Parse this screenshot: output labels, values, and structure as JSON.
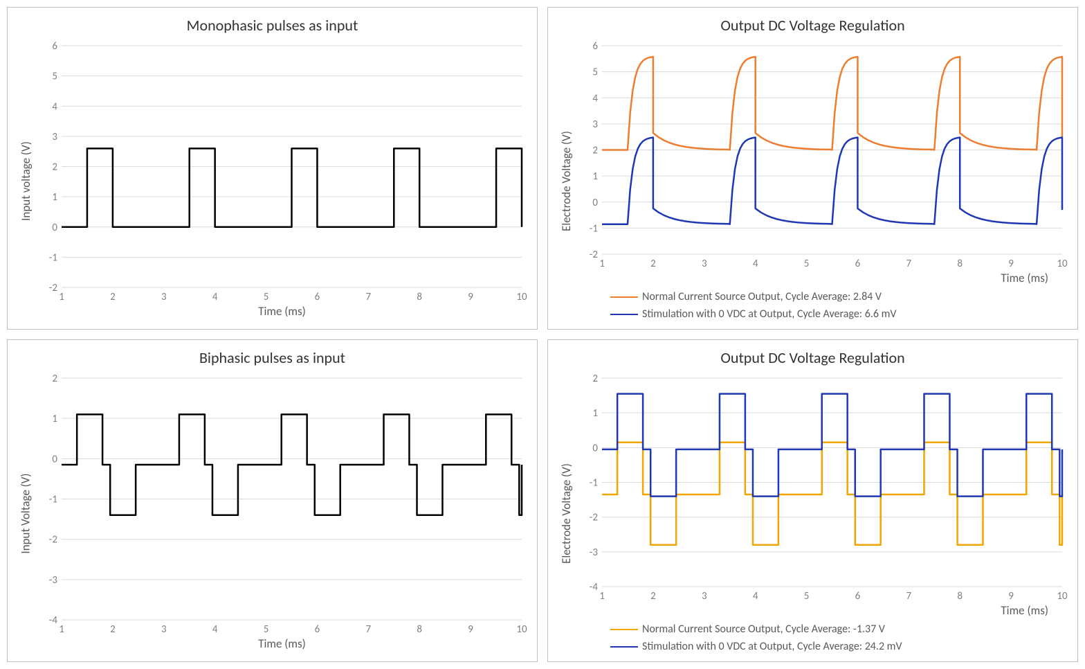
{
  "panels": {
    "tl": {
      "title": "Monophasic pulses as input",
      "ylabel": "Input voltage (V)",
      "xlabel": "Time (ms)",
      "type": "line",
      "xlim": [
        1,
        10
      ],
      "ylim": [
        -2,
        6
      ],
      "xticks": [
        1,
        2,
        3,
        4,
        5,
        6,
        7,
        8,
        9,
        10
      ],
      "yticks": [
        -2,
        -1,
        0,
        1,
        2,
        3,
        4,
        5,
        6
      ],
      "grid_color": "#d9d9d9",
      "background_color": "#ffffff",
      "series": [
        {
          "name": "input",
          "color": "#000000",
          "width": 2.5,
          "baseline": 0,
          "high": 2.6,
          "pulses": [
            {
              "start": 1.5,
              "end": 2.0
            },
            {
              "start": 3.5,
              "end": 4.0
            },
            {
              "start": 5.5,
              "end": 6.0
            },
            {
              "start": 7.5,
              "end": 8.0
            },
            {
              "start": 9.5,
              "end": 10.0
            }
          ]
        }
      ]
    },
    "tr": {
      "title": "Output DC Voltage Regulation",
      "ylabel": "Electrode Voltage (V)",
      "xlabel": "Time (ms)",
      "type": "line",
      "xlim": [
        1,
        10
      ],
      "ylim": [
        -2,
        6
      ],
      "xticks": [
        1,
        2,
        3,
        4,
        5,
        6,
        7,
        8,
        9,
        10
      ],
      "yticks": [
        -2,
        -1,
        0,
        1,
        2,
        3,
        4,
        5,
        6
      ],
      "grid_color": "#d9d9d9",
      "background_color": "#ffffff",
      "series": [
        {
          "name": "normal",
          "color": "#ed7d31",
          "width": 2.5,
          "shape": "rc",
          "base": 2.0,
          "peak": 5.6,
          "end_plateau": 2.5,
          "pulses": [
            {
              "start": 1.5,
              "end": 2.0
            },
            {
              "start": 3.5,
              "end": 4.0
            },
            {
              "start": 5.5,
              "end": 6.0
            },
            {
              "start": 7.5,
              "end": 8.0
            },
            {
              "start": 9.5,
              "end": 10.0
            }
          ]
        },
        {
          "name": "zero-vdc",
          "color": "#2037b3",
          "width": 2.5,
          "shape": "rc",
          "base": -0.85,
          "peak": 2.5,
          "end_plateau": -0.3,
          "pulses": [
            {
              "start": 1.5,
              "end": 2.0
            },
            {
              "start": 3.5,
              "end": 4.0
            },
            {
              "start": 5.5,
              "end": 6.0
            },
            {
              "start": 7.5,
              "end": 8.0
            },
            {
              "start": 9.5,
              "end": 10.0
            }
          ]
        }
      ],
      "legend": [
        {
          "color": "#ed7d31",
          "label": "Normal Current Source Output, Cycle Average: 2.84 V"
        },
        {
          "color": "#2037b3",
          "label": "Stimulation with 0 VDC at Output, Cycle Average: 6.6 mV"
        }
      ]
    },
    "bl": {
      "title": "Biphasic pulses as input",
      "ylabel": "Input Voltage (V)",
      "xlabel": "Time (ms)",
      "type": "line",
      "xlim": [
        1,
        10
      ],
      "ylim": [
        -4,
        2
      ],
      "xticks": [
        1,
        2,
        3,
        4,
        5,
        6,
        7,
        8,
        9,
        10
      ],
      "yticks": [
        -4,
        -3,
        -2,
        -1,
        0,
        1,
        2
      ],
      "grid_color": "#d9d9d9",
      "background_color": "#ffffff",
      "series": [
        {
          "name": "input",
          "color": "#000000",
          "width": 2.5,
          "shape": "biphasic",
          "baseline": -0.15,
          "pos": 1.1,
          "neg": -1.4,
          "pulses": [
            {
              "pstart": 1.3,
              "pend": 1.8,
              "nstart": 1.95,
              "nend": 2.45
            },
            {
              "pstart": 3.3,
              "pend": 3.8,
              "nstart": 3.95,
              "nend": 4.45
            },
            {
              "pstart": 5.3,
              "pend": 5.8,
              "nstart": 5.95,
              "nend": 6.45
            },
            {
              "pstart": 7.3,
              "pend": 7.8,
              "nstart": 7.95,
              "nend": 8.45
            },
            {
              "pstart": 9.3,
              "pend": 9.8,
              "nstart": 9.95,
              "nend": 10.0
            }
          ]
        }
      ]
    },
    "br": {
      "title": "Output DC Voltage Regulation",
      "ylabel": "Electrode Voltage (V)",
      "xlabel": "Time (ms)",
      "type": "line",
      "xlim": [
        1,
        10
      ],
      "ylim": [
        -4,
        2
      ],
      "xticks": [
        1,
        2,
        3,
        4,
        5,
        6,
        7,
        8,
        9,
        10
      ],
      "yticks": [
        -4,
        -3,
        -2,
        -1,
        0,
        1,
        2
      ],
      "grid_color": "#d9d9d9",
      "background_color": "#ffffff",
      "series": [
        {
          "name": "normal",
          "color": "#f2a600",
          "width": 2.5,
          "shape": "biphasic-square",
          "baseline": -1.35,
          "pos": 0.15,
          "neg": -2.8,
          "pulses": [
            {
              "pstart": 1.3,
              "pend": 1.8,
              "nstart": 1.95,
              "nend": 2.45
            },
            {
              "pstart": 3.3,
              "pend": 3.8,
              "nstart": 3.95,
              "nend": 4.45
            },
            {
              "pstart": 5.3,
              "pend": 5.8,
              "nstart": 5.95,
              "nend": 6.45
            },
            {
              "pstart": 7.3,
              "pend": 7.8,
              "nstart": 7.95,
              "nend": 8.45
            },
            {
              "pstart": 9.3,
              "pend": 9.8,
              "nstart": 9.95,
              "nend": 10.0
            }
          ]
        },
        {
          "name": "zero-vdc",
          "color": "#2037b3",
          "width": 2.5,
          "shape": "biphasic-square",
          "baseline": -0.05,
          "pos": 1.55,
          "neg": -1.4,
          "pulses": [
            {
              "pstart": 1.3,
              "pend": 1.8,
              "nstart": 1.95,
              "nend": 2.45
            },
            {
              "pstart": 3.3,
              "pend": 3.8,
              "nstart": 3.95,
              "nend": 4.45
            },
            {
              "pstart": 5.3,
              "pend": 5.8,
              "nstart": 5.95,
              "nend": 6.45
            },
            {
              "pstart": 7.3,
              "pend": 7.8,
              "nstart": 7.95,
              "nend": 8.45
            },
            {
              "pstart": 9.3,
              "pend": 9.8,
              "nstart": 9.95,
              "nend": 10.0
            }
          ]
        }
      ],
      "legend": [
        {
          "color": "#f2a600",
          "label": "Normal Current Source Output, Cycle Average:  -1.37 V"
        },
        {
          "color": "#2037b3",
          "label": "Stimulation with 0 VDC at Output,  Cycle Average: 24.2 mV"
        }
      ]
    }
  },
  "title_fontsize": 22,
  "label_fontsize": 17,
  "tick_fontsize": 15,
  "tick_color": "#808080"
}
